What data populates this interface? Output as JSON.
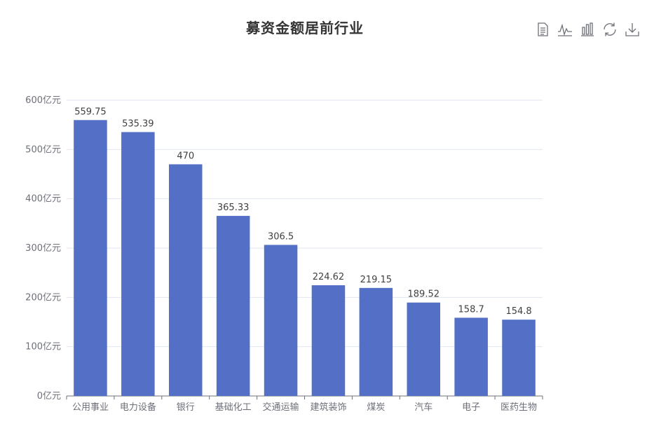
{
  "title": "募资金额居前行业",
  "toolbox": {
    "icons": [
      "data-view-icon",
      "line-chart-icon",
      "bar-chart-icon",
      "restore-icon",
      "download-icon"
    ]
  },
  "chart_data": {
    "type": "bar",
    "title": "募资金额居前行业",
    "categories": [
      "公用事业",
      "电力设备",
      "银行",
      "基础化工",
      "交通运输",
      "建筑装饰",
      "煤炭",
      "汽车",
      "电子",
      "医药生物"
    ],
    "values": [
      559.75,
      535.39,
      470,
      365.33,
      306.5,
      224.62,
      219.15,
      189.52,
      158.7,
      154.8
    ],
    "data_labels": [
      "559.75",
      "535.39",
      "470",
      "365.33",
      "306.5",
      "224.62",
      "219.15",
      "189.52",
      "158.7",
      "154.8"
    ],
    "ylim": [
      0,
      600
    ],
    "yticks": [
      0,
      100,
      200,
      300,
      400,
      500,
      600
    ],
    "ytick_labels": [
      "0亿元",
      "100亿元",
      "200亿元",
      "300亿元",
      "400亿元",
      "500亿元",
      "600亿元"
    ],
    "bar_color": "#5470c6",
    "grid": true
  }
}
